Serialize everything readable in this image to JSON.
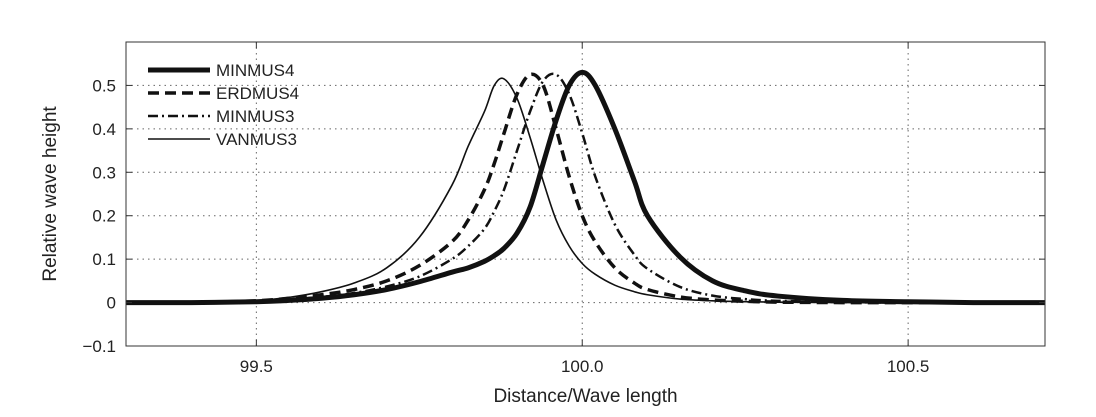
{
  "chart_data": {
    "type": "line",
    "xlabel": "Distance/Wave length",
    "ylabel": "Relative wave height",
    "xlim": [
      99.3,
      100.71
    ],
    "ylim": [
      -0.1,
      0.6
    ],
    "xticks": [
      99.5,
      100.0,
      100.5
    ],
    "xtick_labels": [
      "99.5",
      "100.0",
      "100.5"
    ],
    "yticks": [
      -0.1,
      0,
      0.1,
      0.2,
      0.3,
      0.4,
      0.5
    ],
    "ytick_labels": [
      "−0.1",
      "0",
      "0.1",
      "0.2",
      "0.3",
      "0.4",
      "0.5"
    ],
    "grid": true,
    "legend_position": "top-left",
    "x": [
      99.3,
      99.4,
      99.5,
      99.55,
      99.6,
      99.65,
      99.7,
      99.75,
      99.8,
      99.825,
      99.85,
      99.865,
      99.88,
      99.9,
      99.92,
      99.94,
      99.96,
      99.98,
      100.0,
      100.02,
      100.05,
      100.08,
      100.1,
      100.15,
      100.2,
      100.25,
      100.3,
      100.4,
      100.5,
      100.6,
      100.71
    ],
    "series": [
      {
        "name": "MINMUS4",
        "style": "thick-solid",
        "values": [
          0.0,
          0.0,
          0.002,
          0.005,
          0.01,
          0.018,
          0.03,
          0.048,
          0.07,
          0.08,
          0.095,
          0.108,
          0.125,
          0.16,
          0.22,
          0.32,
          0.42,
          0.5,
          0.53,
          0.5,
          0.4,
          0.28,
          0.2,
          0.105,
          0.05,
          0.027,
          0.015,
          0.005,
          0.002,
          0.0,
          0.0
        ]
      },
      {
        "name": "ERDMUS4",
        "style": "dashed",
        "values": [
          0.0,
          0.0,
          0.004,
          0.01,
          0.018,
          0.03,
          0.05,
          0.085,
          0.14,
          0.19,
          0.26,
          0.32,
          0.39,
          0.48,
          0.525,
          0.5,
          0.4,
          0.29,
          0.2,
          0.14,
          0.08,
          0.045,
          0.03,
          0.013,
          0.006,
          0.003,
          0.001,
          0.0,
          0.0,
          0.0,
          0.0
        ]
      },
      {
        "name": "MINMUS3",
        "style": "dash-dot",
        "values": [
          0.0,
          0.0,
          0.003,
          0.007,
          0.013,
          0.022,
          0.037,
          0.06,
          0.1,
          0.13,
          0.17,
          0.21,
          0.26,
          0.35,
          0.44,
          0.51,
          0.525,
          0.48,
          0.39,
          0.29,
          0.18,
          0.11,
          0.078,
          0.036,
          0.016,
          0.008,
          0.004,
          0.001,
          0.0,
          0.0,
          0.0
        ]
      },
      {
        "name": "VANMUS3",
        "style": "thin-solid",
        "values": [
          0.0,
          0.0,
          0.005,
          0.012,
          0.025,
          0.045,
          0.08,
          0.15,
          0.27,
          0.36,
          0.44,
          0.5,
          0.515,
          0.47,
          0.38,
          0.28,
          0.19,
          0.13,
          0.09,
          0.065,
          0.04,
          0.025,
          0.018,
          0.008,
          0.004,
          0.002,
          0.001,
          0.0,
          0.0,
          0.0,
          0.0
        ]
      }
    ]
  },
  "styles": {
    "thick-solid": {
      "stroke": "#111111",
      "width": 5,
      "dash": ""
    },
    "dashed": {
      "stroke": "#111111",
      "width": 3.5,
      "dash": "11 6"
    },
    "dash-dot": {
      "stroke": "#111111",
      "width": 2.5,
      "dash": "10 4 2 4"
    },
    "thin-solid": {
      "stroke": "#111111",
      "width": 1.6,
      "dash": ""
    },
    "grid_color": "#666666",
    "axis_color": "#333333"
  }
}
